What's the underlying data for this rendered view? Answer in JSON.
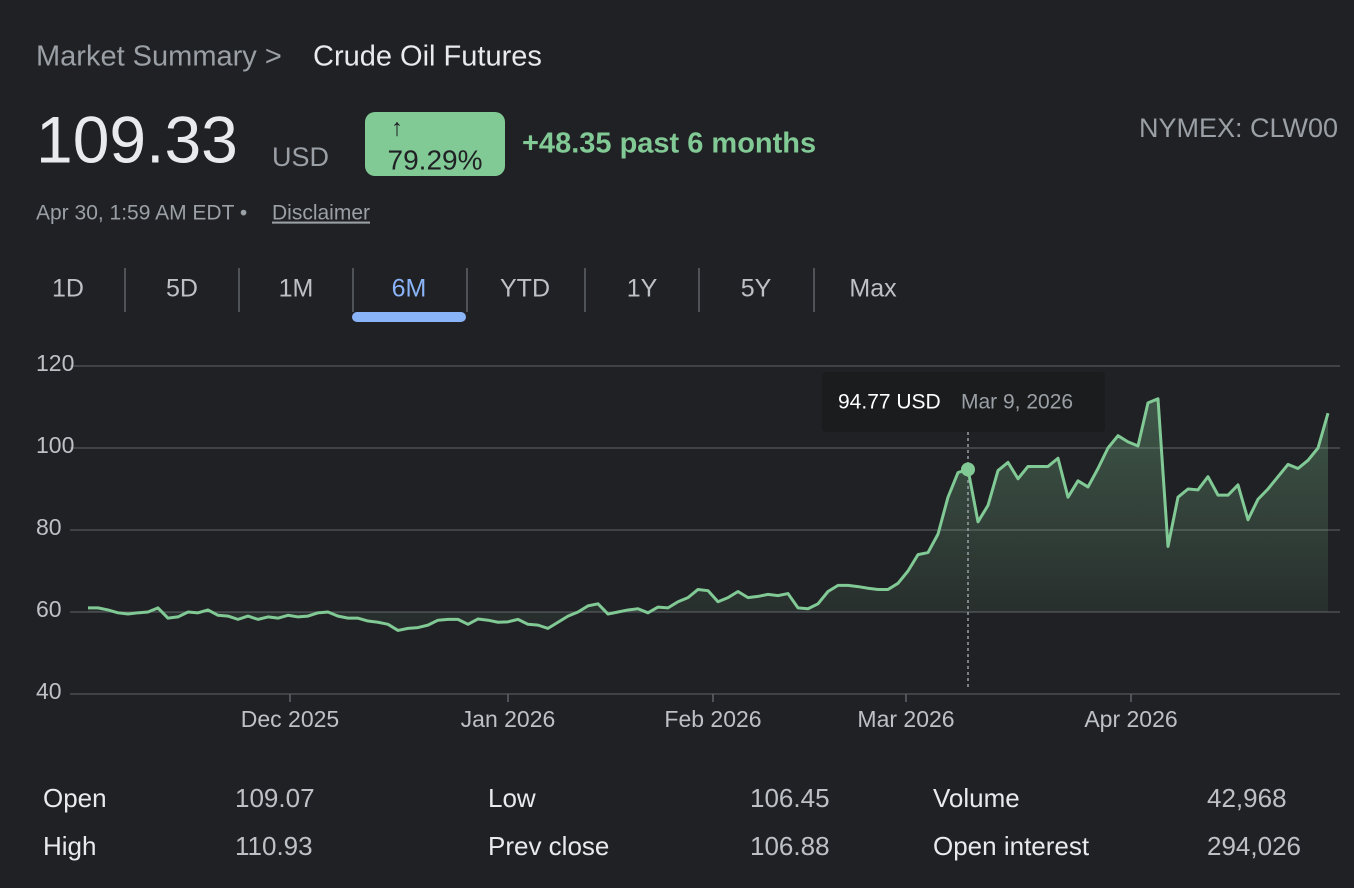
{
  "header": {
    "breadcrumb": "Market Summary >",
    "title": "Crude Oil Futures",
    "price": "109.33",
    "currency": "USD",
    "arrow": "↑",
    "change_pct": "79.29%",
    "change_text": "+48.35 past 6 months",
    "exchange": "NYMEX: CLW00",
    "timestamp": "Apr 30, 1:59 AM EDT •",
    "disclaimer": "Disclaimer"
  },
  "tabs": {
    "items": [
      "1D",
      "5D",
      "1M",
      "6M",
      "YTD",
      "1Y",
      "5Y",
      "Max"
    ],
    "active": "6M"
  },
  "chart_data": {
    "type": "line",
    "color": "#81c995",
    "grid": true,
    "values": [
      61,
      61,
      60.5,
      59.8,
      59.5,
      59.8,
      60,
      61,
      58.5,
      58.8,
      60,
      59.8,
      60.5,
      59.2,
      59,
      58.2,
      59,
      58.2,
      58.8,
      58.5,
      59.2,
      58.8,
      59,
      59.8,
      60,
      59,
      58.5,
      58.5,
      57.8,
      57.5,
      57,
      55.5,
      56,
      56.2,
      56.8,
      58,
      58.2,
      58.2,
      57,
      58.3,
      58,
      57.5,
      57.6,
      58.2,
      57,
      56.8,
      56,
      57.5,
      59,
      60,
      61.5,
      62,
      59.5,
      60,
      60.5,
      60.8,
      59.8,
      61.2,
      61,
      62.5,
      63.5,
      65.5,
      65.2,
      62.5,
      63.5,
      65,
      63.5,
      63.8,
      64.3,
      64,
      64.5,
      61,
      60.8,
      62,
      65,
      66.5,
      66.5,
      66.2,
      65.8,
      65.5,
      65.5,
      67,
      70,
      74,
      74.5,
      79,
      88,
      94,
      94.77,
      82,
      86,
      94.5,
      96.5,
      92.5,
      95.5,
      95.5,
      95.5,
      97.5,
      88,
      92,
      90.5,
      95,
      100,
      103,
      101.5,
      100.5,
      111,
      112,
      76,
      88,
      90,
      89.8,
      93,
      88.5,
      88.5,
      91,
      82.5,
      87.5,
      90,
      93,
      96,
      95,
      97,
      100,
      108.5
    ],
    "ylim": [
      40,
      120
    ],
    "yticks": [
      40,
      60,
      80,
      100,
      120
    ],
    "xticks": [
      {
        "value": 20.2,
        "label": "Dec 2025"
      },
      {
        "value": 42,
        "label": "Jan 2026"
      },
      {
        "value": 62.5,
        "label": "Feb 2026"
      },
      {
        "value": 81.8,
        "label": "Mar 2026"
      },
      {
        "value": 104.3,
        "label": "Apr 2026"
      }
    ],
    "tooltip": {
      "price": "94.77 USD",
      "date": "Mar 9, 2026"
    }
  },
  "stats": {
    "rows": [
      [
        "Open",
        "109.07",
        "Low",
        "106.45",
        "Volume",
        "42,968"
      ],
      [
        "High",
        "110.93",
        "Prev close",
        "106.88",
        "Open interest",
        "294,026"
      ]
    ]
  }
}
